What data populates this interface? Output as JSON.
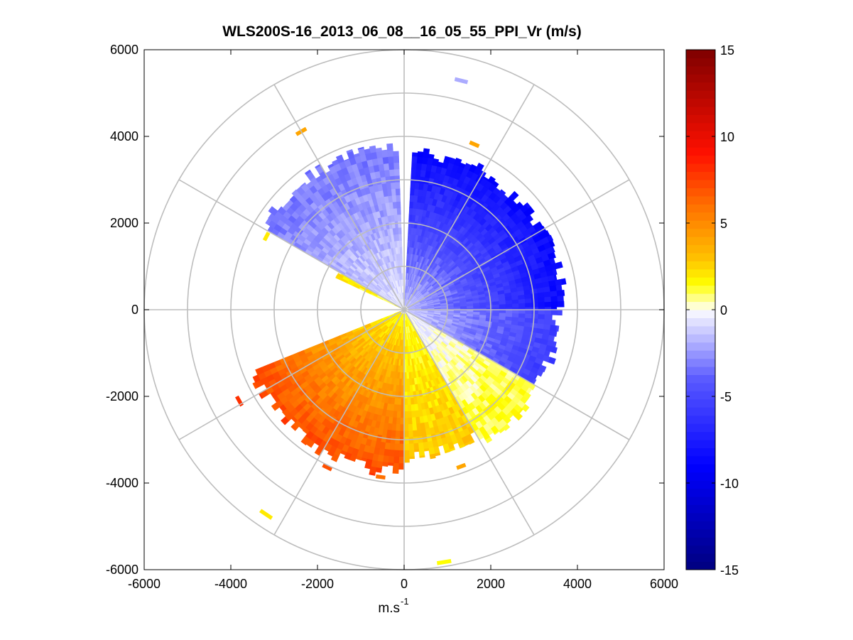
{
  "chart_data": {
    "type": "polar-ppi",
    "title": "WLS200S-16_2013_06_08__16_05_55_PPI_Vr (m/s)",
    "xlabel": "m.s",
    "xlabel_superscript": "-1",
    "ylabel": "",
    "xlim": [
      -6000,
      6000
    ],
    "ylim": [
      -6000,
      6000
    ],
    "xticks": [
      -6000,
      -4000,
      -2000,
      0,
      2000,
      4000,
      6000
    ],
    "yticks": [
      -6000,
      -4000,
      -2000,
      0,
      2000,
      4000,
      6000
    ],
    "xtick_labels": [
      "-6000",
      "-4000",
      "-2000",
      "0",
      "2000",
      "4000",
      "6000"
    ],
    "ytick_labels": [
      "-6000",
      "-4000",
      "-2000",
      "0",
      "2000",
      "4000",
      "6000"
    ],
    "range_rings_m": [
      1000,
      2000,
      3000,
      4000,
      5000,
      6000
    ],
    "radial_spokes_deg": [
      0,
      30,
      60,
      90,
      120,
      150,
      180,
      210,
      240,
      270,
      300,
      330
    ],
    "colorbar": {
      "label": "Vr (m/s)",
      "clim": [
        -15,
        15
      ],
      "ticks": [
        -15,
        -10,
        -5,
        0,
        5,
        10,
        15
      ],
      "tick_labels": [
        "-15",
        "-10",
        "-5",
        "0",
        "5",
        "10",
        "15"
      ],
      "colormap": "blue-white-yellow-red",
      "color_stops": [
        {
          "value": -15,
          "color": "#00007f"
        },
        {
          "value": -9,
          "color": "#0000ff"
        },
        {
          "value": -4,
          "color": "#5a5aff"
        },
        {
          "value": -0.2,
          "color": "#f4f4ff"
        },
        {
          "value": 0.2,
          "color": "#ffffd8"
        },
        {
          "value": 1.5,
          "color": "#ffff00"
        },
        {
          "value": 3,
          "color": "#ffc000"
        },
        {
          "value": 6,
          "color": "#ff7000"
        },
        {
          "value": 9,
          "color": "#ff1000"
        },
        {
          "value": 15,
          "color": "#7f0000"
        }
      ]
    },
    "sectors": [
      {
        "name": "north-east-blue",
        "az_start_deg": 3,
        "az_end_deg": 90,
        "r_max_m": 3800,
        "vr_inner": -1.5,
        "vr_outer": -9
      },
      {
        "name": "east-blue",
        "az_start_deg": 90,
        "az_end_deg": 120,
        "r_max_m": 3700,
        "vr_inner": -1.0,
        "vr_outer": -6
      },
      {
        "name": "south-east-transition",
        "az_start_deg": 120,
        "az_end_deg": 150,
        "r_max_m": 3700,
        "vr_inner": -0.5,
        "vr_outer": 1.5
      },
      {
        "name": "south-yellow",
        "az_start_deg": 150,
        "az_end_deg": 180,
        "r_max_m": 3550,
        "vr_inner": 1.2,
        "vr_outer": 3
      },
      {
        "name": "south-west-orange",
        "az_start_deg": 180,
        "az_end_deg": 248,
        "r_max_m": 3900,
        "vr_inner": 1.5,
        "vr_outer": 7.5
      },
      {
        "name": "west-north-west-yellow",
        "az_start_deg": 295,
        "az_end_deg": 325,
        "r_max_m": 1900,
        "vr_inner": 1.2,
        "vr_outer": 2
      },
      {
        "name": "north-north-west-lightblue",
        "az_start_deg": 300,
        "az_end_deg": 358,
        "r_max_m": 3900,
        "vr_inner": -0.5,
        "vr_outer": -3.5
      }
    ],
    "isolated_returns": [
      {
        "az_deg": 23,
        "r_m": 4150,
        "vr": 4
      },
      {
        "az_deg": 330,
        "r_m": 4750,
        "vr": 4
      },
      {
        "az_deg": 14,
        "r_m": 5450,
        "vr": -2
      },
      {
        "az_deg": 214,
        "r_m": 5700,
        "vr": 2
      },
      {
        "az_deg": 171,
        "r_m": 5900,
        "vr": 1.5
      },
      {
        "az_deg": 298,
        "r_m": 3600,
        "vr": 2
      },
      {
        "az_deg": 241,
        "r_m": 4350,
        "vr": 8
      },
      {
        "az_deg": 206,
        "r_m": 4050,
        "vr": 7
      },
      {
        "az_deg": 188,
        "r_m": 3900,
        "vr": 6
      },
      {
        "az_deg": 160,
        "r_m": 3850,
        "vr": 4
      }
    ]
  }
}
